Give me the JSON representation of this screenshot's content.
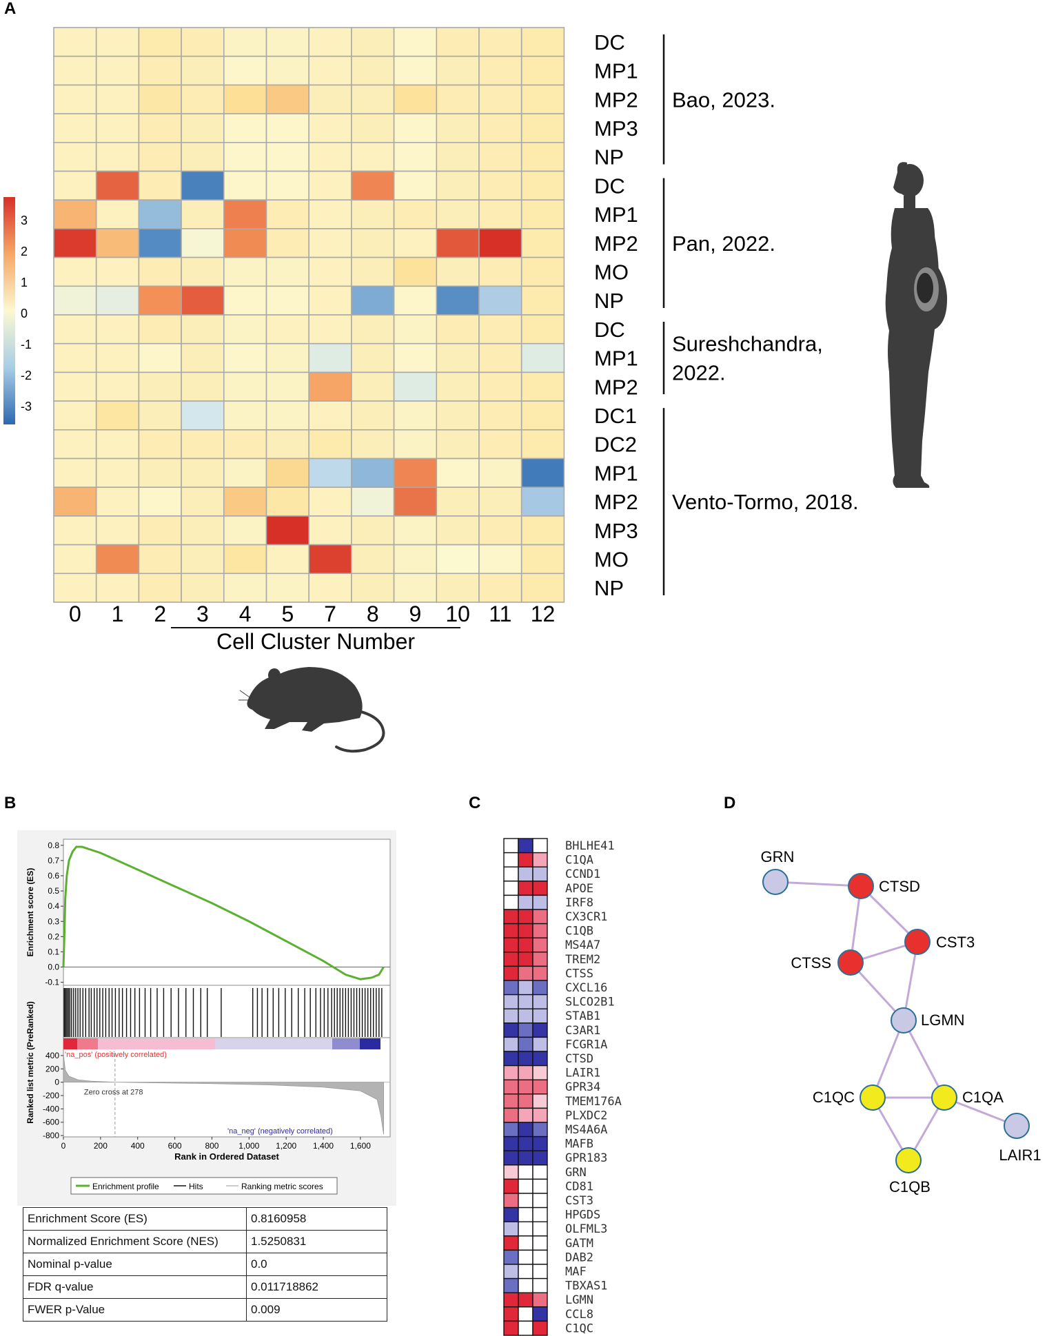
{
  "panels": {
    "a": "A",
    "b": "B",
    "c": "C",
    "d": "D"
  },
  "panel_a": {
    "clusters": [
      "0",
      "1",
      "2",
      "3",
      "4",
      "5",
      "7",
      "8",
      "9",
      "10",
      "11",
      "12"
    ],
    "x_title": "Cell Cluster Number",
    "rows": [
      "DC",
      "MP1",
      "MP2",
      "MP3",
      "NP",
      "DC",
      "MP1",
      "MP2",
      "MO",
      "NP",
      "DC",
      "MP1",
      "MP2",
      "DC1",
      "DC2",
      "MP1",
      "MP2",
      "MP3",
      "MO",
      "NP"
    ],
    "groups": [
      {
        "label_lines": [
          "Bao, 2023."
        ],
        "start": 0,
        "end": 4
      },
      {
        "label_lines": [
          "Pan, 2022."
        ],
        "start": 5,
        "end": 9
      },
      {
        "label_lines": [
          "Sureshchandra,",
          "2022."
        ],
        "start": 10,
        "end": 12
      },
      {
        "label_lines": [
          "Vento-Tormo, 2018."
        ],
        "start": 13,
        "end": 19
      }
    ],
    "colorbar_ticks": [
      "3",
      "2",
      "1",
      "0",
      "-1",
      "-2",
      "-3"
    ],
    "values": [
      [
        0.3,
        0.3,
        0.6,
        0.5,
        0.2,
        0.2,
        0.3,
        0.4,
        0.1,
        0.5,
        0.5,
        0.6
      ],
      [
        0.3,
        0.3,
        0.5,
        0.4,
        0.1,
        0.2,
        0.3,
        0.4,
        0.1,
        0.4,
        0.5,
        0.6
      ],
      [
        0.3,
        0.3,
        0.7,
        0.5,
        1.0,
        1.3,
        0.4,
        0.4,
        0.9,
        0.5,
        0.5,
        0.6
      ],
      [
        0.3,
        0.3,
        0.5,
        0.4,
        0.1,
        0.1,
        0.3,
        0.4,
        0.1,
        0.4,
        0.5,
        0.6
      ],
      [
        0.3,
        0.3,
        0.5,
        0.4,
        0.1,
        0.1,
        0.3,
        0.3,
        0.1,
        0.4,
        0.5,
        0.6
      ],
      [
        0.3,
        2.9,
        0.5,
        -3.0,
        0.1,
        0.1,
        0.3,
        2.3,
        0.1,
        0.4,
        0.5,
        0.6
      ],
      [
        1.6,
        0.3,
        -1.5,
        0.4,
        2.4,
        0.5,
        0.3,
        0.4,
        0.5,
        0.4,
        0.5,
        0.6
      ],
      [
        3.6,
        1.5,
        -2.7,
        -0.1,
        2.2,
        0.5,
        0.3,
        0.4,
        0.3,
        3.1,
        3.8,
        0.6
      ],
      [
        0.3,
        0.3,
        0.5,
        0.4,
        0.2,
        0.2,
        0.3,
        0.4,
        0.9,
        0.4,
        0.5,
        0.6
      ],
      [
        -0.2,
        -0.4,
        2.1,
        3.0,
        0.1,
        0.1,
        0.3,
        -1.8,
        0.1,
        -2.6,
        -1.2,
        0.6
      ],
      [
        0.3,
        0.3,
        0.5,
        0.4,
        0.2,
        0.3,
        0.3,
        0.4,
        0.2,
        0.5,
        0.5,
        0.6
      ],
      [
        0.3,
        0.3,
        0.1,
        0.4,
        0.1,
        0.2,
        -0.5,
        0.4,
        0.1,
        0.4,
        0.5,
        -0.5
      ],
      [
        0.3,
        0.3,
        0.4,
        0.4,
        0.2,
        0.2,
        1.8,
        0.4,
        -0.5,
        0.4,
        0.5,
        0.6
      ],
      [
        0.3,
        0.8,
        0.4,
        -0.7,
        0.2,
        0.2,
        0.3,
        0.4,
        0.2,
        0.4,
        0.5,
        0.6
      ],
      [
        0.3,
        0.3,
        0.5,
        0.5,
        0.5,
        0.4,
        0.6,
        0.4,
        0.2,
        0.4,
        0.5,
        0.6
      ],
      [
        0.3,
        0.3,
        0.4,
        0.4,
        0.2,
        1.1,
        -1.0,
        -1.6,
        2.3,
        0.1,
        0.2,
        -3.2
      ],
      [
        1.6,
        0.3,
        0.1,
        0.4,
        1.3,
        0.7,
        0.3,
        -0.2,
        2.6,
        0.4,
        0.4,
        -1.3
      ],
      [
        0.3,
        0.3,
        0.5,
        0.4,
        0.2,
        3.8,
        0.3,
        0.4,
        0.2,
        0.4,
        0.5,
        0.6
      ],
      [
        0.3,
        2.2,
        0.5,
        0.4,
        0.8,
        0.3,
        3.5,
        0.4,
        0.2,
        0.0,
        0.1,
        0.6
      ],
      [
        0.3,
        0.3,
        0.5,
        0.4,
        0.2,
        0.2,
        0.3,
        0.4,
        0.2,
        0.4,
        0.5,
        0.6
      ]
    ]
  },
  "panel_b": {
    "chart_data": {
      "type": "line",
      "title": "",
      "es_axis": {
        "label": "Enrichment score (ES)",
        "ticks": [
          "0.8",
          "0.7",
          "0.6",
          "0.5",
          "0.4",
          "0.3",
          "0.2",
          "0.1",
          "0.0",
          "-0.1"
        ],
        "range": [
          -0.12,
          0.84
        ]
      },
      "rank_axis": {
        "label": "Ranked list metric (PreRanked)",
        "ticks": [
          "400",
          "200",
          "0",
          "-200",
          "-400",
          "-600",
          "-800"
        ],
        "range": [
          -820,
          420
        ]
      },
      "xlabel": "Rank in Ordered Dataset",
      "x_ticks": [
        "0",
        "200",
        "400",
        "600",
        "800",
        "1,000",
        "1,200",
        "1,400",
        "1,600"
      ],
      "xlim": [
        0,
        1760
      ],
      "es_curve": [
        [
          0,
          0
        ],
        [
          5,
          0.2
        ],
        [
          10,
          0.45
        ],
        [
          18,
          0.6
        ],
        [
          30,
          0.7
        ],
        [
          50,
          0.76
        ],
        [
          70,
          0.79
        ],
        [
          100,
          0.79
        ],
        [
          200,
          0.75
        ],
        [
          400,
          0.64
        ],
        [
          600,
          0.53
        ],
        [
          800,
          0.42
        ],
        [
          1000,
          0.3
        ],
        [
          1200,
          0.17
        ],
        [
          1400,
          0.04
        ],
        [
          1520,
          -0.05
        ],
        [
          1600,
          -0.08
        ],
        [
          1660,
          -0.07
        ],
        [
          1700,
          -0.05
        ],
        [
          1710,
          -0.03
        ],
        [
          1725,
          0.0
        ]
      ],
      "hits": [
        4,
        9,
        15,
        21,
        28,
        35,
        44,
        55,
        66,
        78,
        90,
        105,
        120,
        138,
        150,
        166,
        181,
        196,
        212,
        228,
        246,
        262,
        280,
        300,
        318,
        340,
        362,
        385,
        410,
        440,
        470,
        505,
        540,
        580,
        620,
        660,
        700,
        740,
        775,
        850,
        1020,
        1045,
        1070,
        1100,
        1130,
        1160,
        1195,
        1230,
        1265,
        1300,
        1330,
        1360,
        1385,
        1405,
        1425,
        1445,
        1460,
        1475,
        1490,
        1505,
        1520,
        1535,
        1550,
        1565,
        1580,
        1595,
        1610,
        1625,
        1640,
        1655,
        1670,
        1685,
        1700,
        1715
      ],
      "rank_profile": [
        [
          0,
          420
        ],
        [
          10,
          180
        ],
        [
          30,
          90
        ],
        [
          80,
          35
        ],
        [
          150,
          15
        ],
        [
          278,
          0
        ],
        [
          500,
          -10
        ],
        [
          800,
          -22
        ],
        [
          1100,
          -40
        ],
        [
          1400,
          -75
        ],
        [
          1600,
          -130
        ],
        [
          1690,
          -260
        ],
        [
          1710,
          -500
        ],
        [
          1725,
          -780
        ]
      ],
      "zero_cross": 278,
      "annotations": {
        "pos": "'na_pos' (positively correlated)",
        "neg": "'na_neg' (negatively correlated)",
        "zero": "Zero cross at 278"
      },
      "legend": [
        "Enrichment profile",
        "Hits",
        "Ranking metric scores"
      ],
      "colors": {
        "es": "#5bb12f",
        "pos": "#e8312e",
        "neg": "#2c2aa0"
      }
    },
    "table": [
      {
        "k": "Enrichment Score (ES)",
        "v": "0.8160958"
      },
      {
        "k": "Normalized Enrichment Score (NES)",
        "v": "1.5250831"
      },
      {
        "k": "Nominal p-value",
        "v": "0.0"
      },
      {
        "k": "FDR q-value",
        "v": "0.011718862"
      },
      {
        "k": "FWER p-Value",
        "v": "0.009"
      }
    ]
  },
  "panel_c": {
    "genes": [
      "BHLHE41",
      "C1QA",
      "CCND1",
      "APOE",
      "IRF8",
      "CX3CR1",
      "C1QB",
      "MS4A7",
      "TREM2",
      "CTSS",
      "CXCL16",
      "SLCO2B1",
      "STAB1",
      "C3AR1",
      "FCGR1A",
      "CTSD",
      "LAIR1",
      "GPR34",
      "TMEM176A",
      "PLXDC2",
      "MS4A6A",
      "MAFB",
      "GPR183",
      "GRN",
      "CD81",
      "CST3",
      "HPGDS",
      "OLFML3",
      "GATM",
      "DAB2",
      "MAF",
      "TBXAS1",
      "LGMN",
      "CCL8",
      "C1QC"
    ],
    "cells": [
      [
        "w",
        "db",
        "w"
      ],
      [
        "w",
        "r",
        "lr"
      ],
      [
        "w",
        "lb",
        "lb"
      ],
      [
        "w",
        "r",
        "r"
      ],
      [
        "w",
        "lb",
        "lb"
      ],
      [
        "r",
        "r",
        "pr"
      ],
      [
        "r",
        "r",
        "pr"
      ],
      [
        "r",
        "r",
        "pr"
      ],
      [
        "r",
        "r",
        "pr"
      ],
      [
        "r",
        "pr",
        "pr"
      ],
      [
        "mb",
        "lb",
        "mb"
      ],
      [
        "lb",
        "lb",
        "lb"
      ],
      [
        "lb",
        "lb",
        "lb"
      ],
      [
        "db",
        "mb",
        "db"
      ],
      [
        "lb",
        "mb",
        "lb"
      ],
      [
        "db",
        "db",
        "db"
      ],
      [
        "lr",
        "lr",
        "pp"
      ],
      [
        "pr",
        "pr",
        "pr"
      ],
      [
        "pr",
        "pr",
        "pp"
      ],
      [
        "pr",
        "lr",
        "lr"
      ],
      [
        "mb",
        "db",
        "mb"
      ],
      [
        "db",
        "db",
        "db"
      ],
      [
        "db",
        "db",
        "db"
      ],
      [
        "pp",
        "w",
        "w"
      ],
      [
        "r",
        "w",
        "w"
      ],
      [
        "pr",
        "w",
        "w"
      ],
      [
        "db",
        "w",
        "w"
      ],
      [
        "lb",
        "w",
        "w"
      ],
      [
        "r",
        "w",
        "w"
      ],
      [
        "mb",
        "w",
        "w"
      ],
      [
        "lb",
        "w",
        "w"
      ],
      [
        "mb",
        "w",
        "w"
      ],
      [
        "r",
        "r",
        "pr"
      ],
      [
        "r",
        "w",
        "db"
      ],
      [
        "r",
        "w",
        "r"
      ]
    ],
    "palette": {
      "w": "#ffffff",
      "r": "#e0283a",
      "pr": "#ec6e82",
      "lr": "#f4a6b8",
      "pp": "#f7cbd6",
      "db": "#3534a4",
      "mb": "#6b6fc2",
      "lb": "#bdbde6"
    }
  },
  "panel_d": {
    "nodes": [
      {
        "id": "GRN",
        "label": "GRN",
        "color": "#c9c9e6"
      },
      {
        "id": "CTSD",
        "label": "CTSD",
        "color": "#e8312e"
      },
      {
        "id": "CST3",
        "label": "CST3",
        "color": "#e8312e"
      },
      {
        "id": "CTSS",
        "label": "CTSS",
        "color": "#e8312e"
      },
      {
        "id": "LGMN",
        "label": "LGMN",
        "color": "#c9c9e6"
      },
      {
        "id": "C1QC",
        "label": "C1QC",
        "color": "#f2ea1d"
      },
      {
        "id": "C1QA",
        "label": "C1QA",
        "color": "#f2ea1d"
      },
      {
        "id": "LAIR1",
        "label": "LAIR1",
        "color": "#c9c9e6"
      },
      {
        "id": "C1QB",
        "label": "C1QB",
        "color": "#f2ea1d"
      }
    ],
    "edges": [
      [
        "GRN",
        "CTSD"
      ],
      [
        "CTSD",
        "CTSS"
      ],
      [
        "CTSD",
        "CST3"
      ],
      [
        "CTSS",
        "CST3"
      ],
      [
        "CTSS",
        "LGMN"
      ],
      [
        "CST3",
        "LGMN"
      ],
      [
        "LGMN",
        "C1QC"
      ],
      [
        "LGMN",
        "C1QA"
      ],
      [
        "C1QC",
        "C1QA"
      ],
      [
        "C1QC",
        "C1QB"
      ],
      [
        "C1QA",
        "C1QB"
      ],
      [
        "C1QA",
        "LAIR1"
      ]
    ]
  }
}
